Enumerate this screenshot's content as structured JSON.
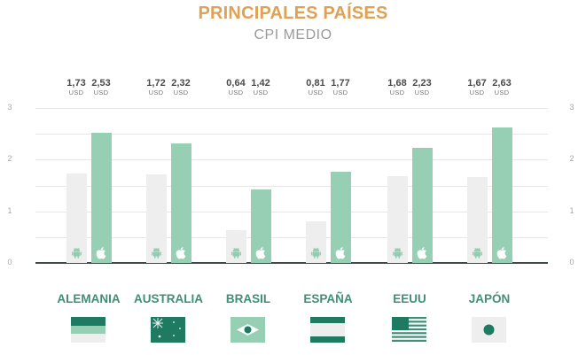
{
  "header": {
    "title": "PRINCIPALES PAÍSES",
    "subtitle": "CPI MEDIO"
  },
  "colors": {
    "title": "#e0a155",
    "android_bar": "#eeeeee",
    "apple_bar": "#96cfb4",
    "icon_green": "#8fcdb0",
    "country_label": "#3f8f77",
    "flag_dark": "#1f7a62",
    "flag_light": "#96cfb4"
  },
  "axis": {
    "left_ticks": [
      "0",
      "1",
      "2",
      "3"
    ],
    "right_ticks": [
      "0",
      "1",
      "2",
      "3"
    ]
  },
  "groups": [
    {
      "country": "ALEMANIA",
      "android": {
        "value": "1,73",
        "currency": "USD"
      },
      "ios": {
        "value": "2,53",
        "currency": "USD"
      },
      "flag_icon": "germany-flag-icon"
    },
    {
      "country": "AUSTRALIA",
      "android": {
        "value": "1,72",
        "currency": "USD"
      },
      "ios": {
        "value": "2,32",
        "currency": "USD"
      },
      "flag_icon": "australia-flag-icon"
    },
    {
      "country": "BRASIL",
      "android": {
        "value": "0,64",
        "currency": "USD"
      },
      "ios": {
        "value": "1,42",
        "currency": "USD"
      },
      "flag_icon": "brazil-flag-icon"
    },
    {
      "country": "ESPAÑA",
      "android": {
        "value": "0,81",
        "currency": "USD"
      },
      "ios": {
        "value": "1,77",
        "currency": "USD"
      },
      "flag_icon": "spain-flag-icon"
    },
    {
      "country": "EEUU",
      "android": {
        "value": "1,68",
        "currency": "USD"
      },
      "ios": {
        "value": "2,23",
        "currency": "USD"
      },
      "flag_icon": "usa-flag-icon"
    },
    {
      "country": "JAPÓN",
      "android": {
        "value": "1,67",
        "currency": "USD"
      },
      "ios": {
        "value": "2,63",
        "currency": "USD"
      },
      "flag_icon": "japan-flag-icon"
    }
  ],
  "chart_data": {
    "type": "bar",
    "title": "PRINCIPALES PAÍSES",
    "subtitle": "CPI MEDIO",
    "categories": [
      "ALEMANIA",
      "AUSTRALIA",
      "BRASIL",
      "ESPAÑA",
      "EEUU",
      "JAPÓN"
    ],
    "series": [
      {
        "name": "Android",
        "icon": "android-icon",
        "color": "#eeeeee",
        "values": [
          1.73,
          1.72,
          0.64,
          0.81,
          1.68,
          1.67
        ]
      },
      {
        "name": "iOS",
        "icon": "apple-icon",
        "color": "#96cfb4",
        "values": [
          2.53,
          2.32,
          1.42,
          1.77,
          2.23,
          2.63
        ]
      }
    ],
    "unit": "USD",
    "xlabel": "",
    "ylabel": "",
    "ylim": [
      0,
      3
    ],
    "yticks": [
      0,
      1,
      2,
      3
    ],
    "grid": true,
    "grid_step": 0.5,
    "legend": "icons inside bars (android / apple)",
    "data_labels_position": "above plot"
  }
}
